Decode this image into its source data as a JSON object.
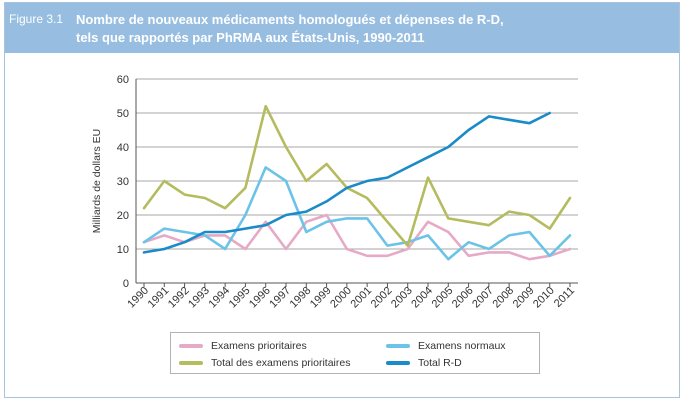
{
  "header": {
    "figure_label": "Figure 3.1",
    "title_line1": "Nombre de nouveaux médicaments homologués et dépenses de R-D,",
    "title_line2": "tels que rapportés par PhRMA aux États-Unis, 1990-2011"
  },
  "chart_data": {
    "type": "line",
    "title": "Nombre de nouveaux médicaments homologués et dépenses de R-D, tels que rapportés par PhRMA aux États-Unis, 1990-2011",
    "xlabel": "",
    "ylabel": "Milliards de dollars EU",
    "ylim": [
      0,
      60
    ],
    "yticks": [
      0,
      10,
      20,
      30,
      40,
      50,
      60
    ],
    "categories": [
      "1990",
      "1991",
      "1992",
      "1993",
      "1994",
      "1995",
      "1996",
      "1997",
      "1998",
      "1999",
      "2000",
      "2001",
      "2002",
      "2003",
      "2004",
      "2005",
      "2006",
      "2007",
      "2008",
      "2009",
      "2010",
      "2011"
    ],
    "grid": true,
    "legend_position": "bottom",
    "series": [
      {
        "name": "Examens prioritaires",
        "color": "#e6a9c6",
        "values": [
          12,
          14,
          12,
          14,
          14,
          10,
          18,
          10,
          18,
          20,
          10,
          8,
          8,
          10,
          18,
          15,
          8,
          9,
          9,
          7,
          8,
          10
        ]
      },
      {
        "name": "Examens normaux",
        "color": "#6cc3e8",
        "values": [
          12,
          16,
          15,
          14,
          10,
          20,
          34,
          30,
          15,
          18,
          19,
          19,
          11,
          12,
          14,
          7,
          12,
          10,
          14,
          15,
          8,
          14
        ]
      },
      {
        "name": "Total des examens prioritaires",
        "color": "#b5bb5f",
        "values": [
          22,
          30,
          26,
          25,
          22,
          28,
          52,
          40,
          30,
          35,
          28,
          25,
          18,
          11,
          31,
          19,
          18,
          17,
          21,
          20,
          16,
          25
        ]
      },
      {
        "name": "Total R-D",
        "color": "#1a8ac8",
        "values": [
          9,
          10,
          12,
          15,
          15,
          16,
          17,
          20,
          21,
          24,
          28,
          30,
          31,
          34,
          37,
          40,
          45,
          49,
          48,
          47,
          50,
          null
        ]
      }
    ]
  }
}
